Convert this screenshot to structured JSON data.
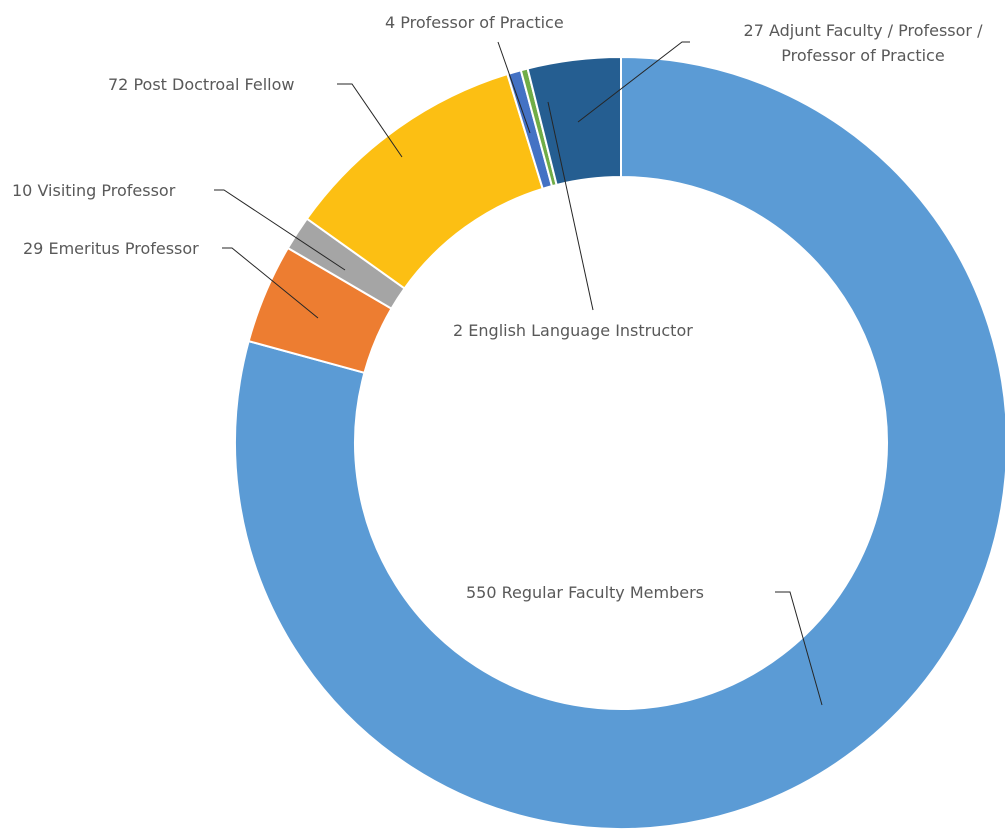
{
  "chart_data": {
    "type": "donut",
    "categories": [
      "Regular Faculty Members",
      "Emeritus Professor",
      "Visiting Professor",
      "Post Doctroal Fellow",
      "Professor of Practice",
      "English Language Instructor",
      "Adjunt Faculty / Professor / Professor of Practice"
    ],
    "values": [
      550,
      29,
      10,
      72,
      4,
      2,
      27
    ],
    "colors": [
      "#5b9bd5",
      "#ed7d31",
      "#a5a5a5",
      "#fcbf13",
      "#4472c4",
      "#70ad47",
      "#255e91"
    ]
  }
}
